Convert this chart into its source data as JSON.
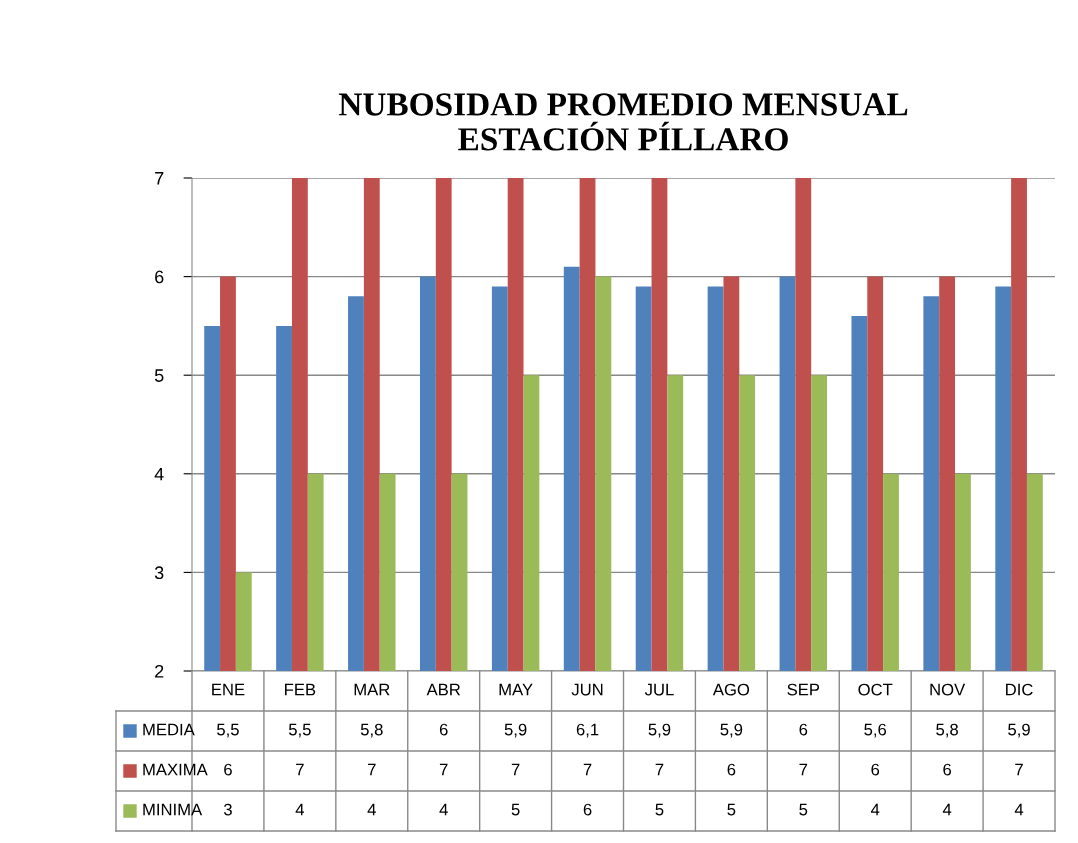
{
  "chart_data": {
    "type": "bar",
    "title": "NUBOSIDAD PROMEDIO MENSUAL\nESTACIÓN PÍLLARO",
    "categories": [
      "ENE",
      "FEB",
      "MAR",
      "ABR",
      "MAY",
      "JUN",
      "JUL",
      "AGO",
      "SEP",
      "OCT",
      "NOV",
      "DIC"
    ],
    "series": [
      {
        "name": "MEDIA",
        "color": "#4f81bd",
        "values": [
          5.5,
          5.5,
          5.8,
          6,
          5.9,
          6.1,
          5.9,
          5.9,
          6,
          5.6,
          5.8,
          5.9
        ],
        "value_labels": [
          "5,5",
          "5,5",
          "5,8",
          "6",
          "5,9",
          "6,1",
          "5,9",
          "5,9",
          "6",
          "5,6",
          "5,8",
          "5,9"
        ]
      },
      {
        "name": "MAXIMA",
        "color": "#c0504d",
        "values": [
          6,
          7,
          7,
          7,
          7,
          7,
          7,
          6,
          7,
          6,
          6,
          7
        ],
        "value_labels": [
          "6",
          "7",
          "7",
          "7",
          "7",
          "7",
          "7",
          "6",
          "7",
          "6",
          "6",
          "7"
        ]
      },
      {
        "name": "MINIMA",
        "color": "#9bbb59",
        "values": [
          3,
          4,
          4,
          4,
          5,
          6,
          5,
          5,
          5,
          4,
          4,
          4
        ],
        "value_labels": [
          "3",
          "4",
          "4",
          "4",
          "5",
          "6",
          "5",
          "5",
          "5",
          "4",
          "4",
          "4"
        ]
      }
    ],
    "ylim": [
      2,
      7
    ],
    "yticks": [
      2,
      3,
      4,
      5,
      6,
      7
    ],
    "grid": "y",
    "legend": "bottom"
  }
}
